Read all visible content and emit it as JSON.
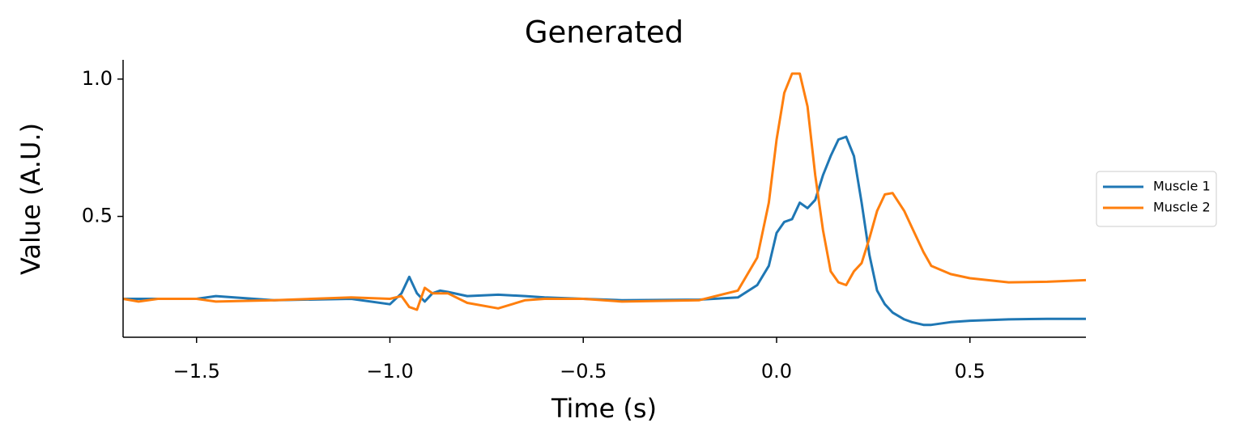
{
  "chart_data": {
    "type": "line",
    "title": "Generated",
    "xlabel": "Time (s)",
    "ylabel": "Value (A.U.)",
    "x": [
      -1.69,
      -1.65,
      -1.6,
      -1.5,
      -1.45,
      -1.3,
      -1.1,
      -1.0,
      -0.97,
      -0.95,
      -0.93,
      -0.91,
      -0.89,
      -0.87,
      -0.85,
      -0.8,
      -0.72,
      -0.65,
      -0.6,
      -0.5,
      -0.4,
      -0.2,
      -0.1,
      -0.05,
      -0.02,
      0.0,
      0.02,
      0.04,
      0.06,
      0.08,
      0.1,
      0.12,
      0.14,
      0.16,
      0.18,
      0.2,
      0.22,
      0.24,
      0.26,
      0.28,
      0.3,
      0.33,
      0.35,
      0.38,
      0.4,
      0.45,
      0.5,
      0.6,
      0.7,
      0.8
    ],
    "series": [
      {
        "name": "Muscle 1",
        "color": "#1f77b4",
        "values": [
          0.2,
          0.2,
          0.2,
          0.2,
          0.21,
          0.195,
          0.2,
          0.18,
          0.22,
          0.28,
          0.22,
          0.19,
          0.22,
          0.23,
          0.225,
          0.21,
          0.215,
          0.21,
          0.205,
          0.2,
          0.195,
          0.197,
          0.205,
          0.25,
          0.32,
          0.44,
          0.48,
          0.49,
          0.55,
          0.53,
          0.56,
          0.65,
          0.72,
          0.78,
          0.79,
          0.72,
          0.55,
          0.36,
          0.23,
          0.18,
          0.15,
          0.125,
          0.115,
          0.105,
          0.105,
          0.115,
          0.12,
          0.125,
          0.127,
          0.127
        ]
      },
      {
        "name": "Muscle 2",
        "color": "#ff7f0e",
        "values": [
          0.2,
          0.19,
          0.2,
          0.2,
          0.19,
          0.195,
          0.205,
          0.2,
          0.21,
          0.17,
          0.16,
          0.24,
          0.22,
          0.22,
          0.22,
          0.185,
          0.165,
          0.195,
          0.2,
          0.2,
          0.19,
          0.195,
          0.23,
          0.35,
          0.55,
          0.78,
          0.95,
          1.02,
          1.02,
          0.9,
          0.65,
          0.45,
          0.3,
          0.26,
          0.25,
          0.3,
          0.33,
          0.42,
          0.52,
          0.58,
          0.585,
          0.52,
          0.46,
          0.37,
          0.32,
          0.29,
          0.275,
          0.26,
          0.262,
          0.268
        ]
      }
    ],
    "xlim": [
      -1.69,
      0.8
    ],
    "ylim": [
      0.06,
      1.07
    ],
    "xticks": [
      {
        "value": -1.5,
        "label": "−1.5"
      },
      {
        "value": -1.0,
        "label": "−1.0"
      },
      {
        "value": -0.5,
        "label": "−0.5"
      },
      {
        "value": 0,
        "label": "0.0"
      },
      0.5
    ],
    "yticks": [
      {
        "value": 0.5,
        "label": "0.5"
      },
      {
        "value": 1,
        "label": "1.0"
      }
    ],
    "legend": "right",
    "grid": false
  }
}
